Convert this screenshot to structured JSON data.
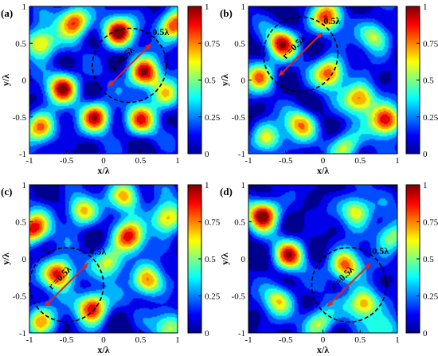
{
  "colorscale": [
    "#00008f",
    "#0000ff",
    "#0080ff",
    "#00ffff",
    "#80ff80",
    "#ffff00",
    "#ff8000",
    "#ff0000",
    "#800000"
  ],
  "chart_data": [
    {
      "type": "heatmap",
      "panel_label": "(a)",
      "xlabel": "x/λ",
      "ylabel": "y/λ",
      "xlim": [
        -1,
        1
      ],
      "ylim": [
        -1,
        1
      ],
      "xticks": [
        "-1",
        "-0.5",
        "0",
        "0.5",
        "1"
      ],
      "yticks": [
        "-1",
        "-0.5",
        "0",
        "0.5",
        "1"
      ],
      "colorbar_ticks": [
        "0",
        "0.25",
        "0.5",
        "0.75",
        "1"
      ],
      "circle": {
        "cx": 0.35,
        "cy": 0.2,
        "r": 0.5
      },
      "circle_label": "0.5λ",
      "radius_label": "r =0.5λ",
      "peaks": [
        [
          0.55,
          0.1,
          1
        ],
        [
          0.2,
          0.65,
          1
        ],
        [
          -0.4,
          0.8,
          0.9
        ],
        [
          -0.55,
          -0.1,
          0.95
        ],
        [
          -0.85,
          0.5,
          0.8
        ],
        [
          -0.1,
          -0.5,
          0.9
        ],
        [
          0.5,
          -0.55,
          0.75
        ],
        [
          0.95,
          0.75,
          0.9
        ],
        [
          -0.85,
          -0.65,
          0.8
        ],
        [
          0.85,
          -0.2,
          0.6
        ]
      ],
      "seed": 1
    },
    {
      "type": "heatmap",
      "panel_label": "(b)",
      "xlabel": "x/λ",
      "ylabel": "y/λ",
      "xlim": [
        -1,
        1
      ],
      "ylim": [
        -1,
        1
      ],
      "xticks": [
        "-1",
        "-0.5",
        "0",
        "0.5",
        "1"
      ],
      "yticks": [
        "-1",
        "-0.5",
        "0",
        "0.5",
        "1"
      ],
      "colorbar_ticks": [
        "0",
        "0.25",
        "0.5",
        "0.75",
        "1"
      ],
      "circle": {
        "cx": -0.3,
        "cy": 0.35,
        "r": 0.5
      },
      "circle_label": "0.5λ",
      "radius_label": "r =0.5λ",
      "peaks": [
        [
          0.85,
          -0.55,
          1
        ],
        [
          -0.55,
          0.5,
          0.85
        ],
        [
          0.1,
          0.1,
          0.85
        ],
        [
          0.5,
          -0.25,
          0.85
        ],
        [
          -0.3,
          -0.6,
          0.7
        ],
        [
          -0.85,
          0.05,
          0.7
        ],
        [
          0.05,
          0.85,
          0.8
        ],
        [
          0.7,
          0.6,
          0.6
        ],
        [
          -0.75,
          -0.8,
          0.6
        ],
        [
          0.3,
          -0.9,
          0.6
        ]
      ],
      "seed": 2
    },
    {
      "type": "heatmap",
      "panel_label": "(c)",
      "xlabel": "x/λ",
      "ylabel": "y/λ",
      "xlim": [
        -1,
        1
      ],
      "ylim": [
        -1,
        1
      ],
      "xticks": [
        "-1",
        "-0.5",
        "0",
        "0.5",
        "1"
      ],
      "yticks": [
        "-1",
        "-0.5",
        "0",
        "0.5",
        "1"
      ],
      "colorbar_ticks": [
        "0",
        "0.25",
        "0.5",
        "0.75",
        "1"
      ],
      "circle": {
        "cx": -0.5,
        "cy": -0.35,
        "r": 0.5
      },
      "circle_label": "0.5λ",
      "radius_label": "r =0.5λ",
      "peaks": [
        [
          -0.6,
          -0.2,
          1
        ],
        [
          -0.15,
          -0.65,
          1
        ],
        [
          -0.95,
          0.4,
          0.95
        ],
        [
          0.35,
          0.3,
          0.85
        ],
        [
          0.85,
          0.55,
          0.8
        ],
        [
          0.6,
          -0.3,
          0.8
        ],
        [
          -0.3,
          0.65,
          0.7
        ],
        [
          0.1,
          -0.05,
          0.6
        ],
        [
          -0.85,
          -0.85,
          0.7
        ],
        [
          0.9,
          -0.9,
          0.6
        ],
        [
          0.3,
          0.85,
          0.7
        ]
      ],
      "seed": 3
    },
    {
      "type": "heatmap",
      "panel_label": "(d)",
      "xlabel": "x/λ",
      "ylabel": "y/λ",
      "xlim": [
        -1,
        1
      ],
      "ylim": [
        -1,
        1
      ],
      "xticks": [
        "-1",
        "-0.5",
        "0",
        "0.5",
        "1"
      ],
      "yticks": [
        "-1",
        "-0.5",
        "0",
        "0.5",
        "1"
      ],
      "colorbar_ticks": [
        "0",
        "0.25",
        "0.5",
        "0.75",
        "1"
      ],
      "circle": {
        "cx": 0.35,
        "cy": -0.35,
        "r": 0.5
      },
      "circle_label": "0.5λ",
      "radius_label": "r =0.5λ",
      "peaks": [
        [
          -0.8,
          0.6,
          1
        ],
        [
          -0.45,
          0.05,
          0.8
        ],
        [
          0.3,
          -0.1,
          0.85
        ],
        [
          0.55,
          -0.6,
          0.8
        ],
        [
          0.45,
          0.65,
          0.7
        ],
        [
          -0.6,
          -0.55,
          0.6
        ],
        [
          0.9,
          0.3,
          0.6
        ],
        [
          -0.05,
          -0.85,
          0.6
        ],
        [
          0.85,
          -0.95,
          0.5
        ]
      ],
      "seed": 4
    }
  ]
}
